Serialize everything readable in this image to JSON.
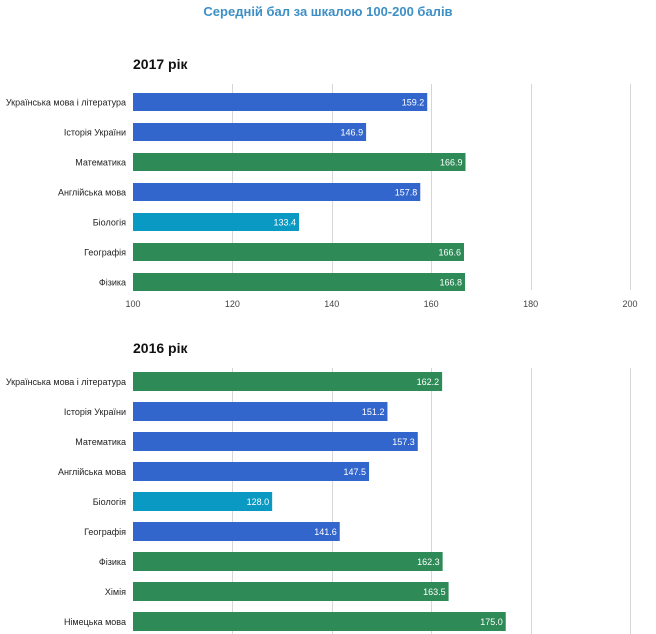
{
  "page_title": "Середній бал за шкалою 100-200 балів",
  "colors": {
    "blue": "#3366cc",
    "green": "#2e8b57",
    "cyan": "#0a99c2",
    "grid": "#d6d6d6"
  },
  "chart_data": [
    {
      "type": "bar",
      "orientation": "horizontal",
      "title": "2017 рік",
      "xlim": [
        100,
        200
      ],
      "ticks": [
        "100",
        "120",
        "140",
        "160",
        "180",
        "200"
      ],
      "grid": true,
      "categories": [
        "Українська мова і література",
        "Історія України",
        "Математика",
        "Англійська мова",
        "Біологія",
        "Географія",
        "Фізика"
      ],
      "values": [
        159.2,
        146.9,
        166.9,
        157.8,
        133.4,
        166.6,
        166.8
      ],
      "labels": [
        "159.2",
        "146.9",
        "166.9",
        "157.8",
        "133.4",
        "166.6",
        "166.8"
      ],
      "bar_colors": [
        "blue",
        "blue",
        "green",
        "blue",
        "cyan",
        "green",
        "green"
      ]
    },
    {
      "type": "bar",
      "orientation": "horizontal",
      "title": "2016 рік",
      "xlim": [
        100,
        200
      ],
      "grid": true,
      "categories": [
        "Українська мова і література",
        "Історія України",
        "Математика",
        "Англійська мова",
        "Біологія",
        "Географія",
        "Фізика",
        "Хімія",
        "Німецька мова"
      ],
      "values": [
        162.2,
        151.2,
        157.3,
        147.5,
        128.0,
        141.6,
        162.3,
        163.5,
        175.0
      ],
      "labels": [
        "162.2",
        "151.2",
        "157.3",
        "147.5",
        "128.0",
        "141.6",
        "162.3",
        "163.5",
        "175.0"
      ],
      "bar_colors": [
        "green",
        "blue",
        "blue",
        "blue",
        "cyan",
        "blue",
        "green",
        "green",
        "green"
      ]
    }
  ]
}
